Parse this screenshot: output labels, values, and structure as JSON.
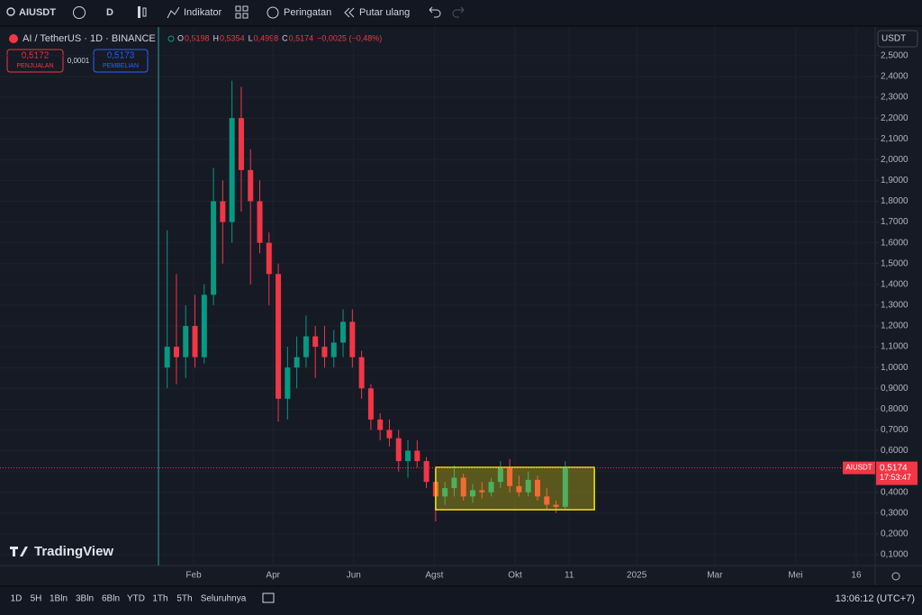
{
  "toolbar": {
    "symbol": "AIUSDT",
    "interval": "D",
    "indicators": "Indikator",
    "alerts": "Peringatan",
    "replay": "Putar ulang"
  },
  "legend": {
    "title": "AI / TetherUS · 1D · BINANCE",
    "ohlc": [
      {
        "key": "O",
        "value": "0,5198"
      },
      {
        "key": "H",
        "value": "0,5354"
      },
      {
        "key": "L",
        "value": "0,4998"
      },
      {
        "key": "C",
        "value": "0,5174"
      }
    ],
    "change": "−0,0025 (−0,48%)"
  },
  "trade": {
    "sell_price": "0,5172",
    "sell_label": "PENJUALAN",
    "spread": "0,0001",
    "buy_price": "0,5173",
    "buy_label": "PEMBELIAN"
  },
  "currency": "USDT",
  "logo": "TradingView",
  "chart_data": {
    "type": "candlestick",
    "x": [
      11,
      18,
      25,
      32,
      39,
      46,
      53,
      60,
      67,
      74,
      81,
      88,
      95,
      102,
      109,
      116,
      123,
      130,
      137,
      144,
      151,
      158,
      165,
      172,
      179,
      186,
      193,
      200,
      207,
      214,
      221,
      228,
      235,
      242,
      249,
      256,
      263,
      270,
      277,
      284,
      291,
      298,
      305,
      312
    ],
    "open": [
      1.0,
      1.1,
      1.05,
      1.2,
      1.05,
      1.35,
      1.8,
      1.7,
      2.2,
      1.95,
      1.8,
      1.6,
      1.45,
      0.85,
      1.0,
      1.05,
      1.15,
      1.1,
      1.05,
      1.12,
      1.22,
      1.05,
      0.9,
      0.75,
      0.7,
      0.66,
      0.55,
      0.6,
      0.55,
      0.45,
      0.38,
      0.42,
      0.47,
      0.38,
      0.41,
      0.4,
      0.45,
      0.52,
      0.43,
      0.4,
      0.46,
      0.38,
      0.34,
      0.33
    ],
    "high": [
      1.66,
      1.45,
      1.3,
      1.35,
      1.4,
      1.96,
      1.9,
      2.38,
      2.35,
      2.05,
      1.9,
      1.65,
      1.5,
      1.1,
      1.15,
      1.25,
      1.2,
      1.2,
      1.18,
      1.28,
      1.28,
      1.08,
      0.92,
      0.78,
      0.75,
      0.7,
      0.65,
      0.65,
      0.57,
      0.46,
      0.45,
      0.53,
      0.49,
      0.44,
      0.45,
      0.47,
      0.55,
      0.56,
      0.48,
      0.5,
      0.48,
      0.42,
      0.36,
      0.55
    ],
    "low": [
      0.9,
      0.92,
      0.95,
      1.0,
      1.02,
      1.3,
      1.5,
      1.6,
      1.75,
      1.4,
      1.55,
      1.3,
      0.74,
      0.75,
      0.9,
      1.0,
      0.95,
      1.0,
      1.0,
      1.05,
      1.0,
      0.85,
      0.7,
      0.65,
      0.62,
      0.5,
      0.47,
      0.52,
      0.42,
      0.26,
      0.34,
      0.38,
      0.36,
      0.35,
      0.37,
      0.38,
      0.42,
      0.4,
      0.38,
      0.38,
      0.36,
      0.32,
      0.3,
      0.32
    ],
    "close": [
      1.1,
      1.05,
      1.2,
      1.05,
      1.35,
      1.8,
      1.7,
      2.2,
      1.95,
      1.8,
      1.6,
      1.45,
      0.85,
      1.0,
      1.05,
      1.15,
      1.1,
      1.05,
      1.12,
      1.22,
      1.05,
      0.9,
      0.75,
      0.7,
      0.66,
      0.55,
      0.6,
      0.55,
      0.45,
      0.38,
      0.42,
      0.47,
      0.38,
      0.41,
      0.4,
      0.45,
      0.52,
      0.43,
      0.4,
      0.46,
      0.38,
      0.34,
      0.33,
      0.5174
    ],
    "up_color": "#089981",
    "down_color": "#f23645",
    "xlim": [
      -115.4,
      546.3
    ],
    "xticks": [
      {
        "value": 31,
        "label": "Feb"
      },
      {
        "value": 91,
        "label": "Apr"
      },
      {
        "value": 152,
        "label": "Jun"
      },
      {
        "value": 213,
        "label": "Agst"
      },
      {
        "value": 274,
        "label": "Okt"
      },
      {
        "value": 315,
        "label": "11"
      },
      {
        "value": 366,
        "label": "2025"
      },
      {
        "value": 425,
        "label": "Mar"
      },
      {
        "value": 486,
        "label": "Mei"
      },
      {
        "value": 532,
        "label": "16"
      }
    ],
    "ylim": [
      0.048,
      2.638
    ],
    "yticks": [
      {
        "value": 0.1,
        "label": "0,1000"
      },
      {
        "value": 0.2,
        "label": "0,2000"
      },
      {
        "value": 0.3,
        "label": "0,3000"
      },
      {
        "value": 0.4,
        "label": "0,4000"
      },
      {
        "value": 0.5,
        "label": "0,5000"
      },
      {
        "value": 0.6,
        "label": "0,6000"
      },
      {
        "value": 0.7,
        "label": "0,7000"
      },
      {
        "value": 0.8,
        "label": "0,8000"
      },
      {
        "value": 0.9,
        "label": "0,9000"
      },
      {
        "value": 1.0,
        "label": "1,0000"
      },
      {
        "value": 1.1,
        "label": "1,1000"
      },
      {
        "value": 1.2,
        "label": "1,2000"
      },
      {
        "value": 1.3,
        "label": "1,3000"
      },
      {
        "value": 1.4,
        "label": "1,4000"
      },
      {
        "value": 1.5,
        "label": "1,5000"
      },
      {
        "value": 1.6,
        "label": "1,6000"
      },
      {
        "value": 1.7,
        "label": "1,7000"
      },
      {
        "value": 1.8,
        "label": "1,8000"
      },
      {
        "value": 1.9,
        "label": "1,9000"
      },
      {
        "value": 2.0,
        "label": "2,0000"
      },
      {
        "value": 2.1,
        "label": "2,1000"
      },
      {
        "value": 2.2,
        "label": "2,2000"
      },
      {
        "value": 2.3,
        "label": "2,3000"
      },
      {
        "value": 2.4,
        "label": "2,4000"
      },
      {
        "value": 2.5,
        "label": "2,5000"
      }
    ],
    "grid": true,
    "last_price": {
      "symbol": "AIUSDT",
      "value": 0.5174,
      "label": "0,5174",
      "countdown": "17:53:47",
      "color": "#f23645"
    },
    "rectangle": {
      "x": [
        214,
        334
      ],
      "y": [
        0.316,
        0.52
      ],
      "color": "#f5e50e"
    }
  },
  "bottom_bar": {
    "ranges": [
      "1D",
      "5H",
      "1Bln",
      "3Bln",
      "6Bln",
      "YTD",
      "1Th",
      "5Th",
      "Seluruhnya"
    ],
    "clock": "13:06:12 (UTC+7)"
  }
}
